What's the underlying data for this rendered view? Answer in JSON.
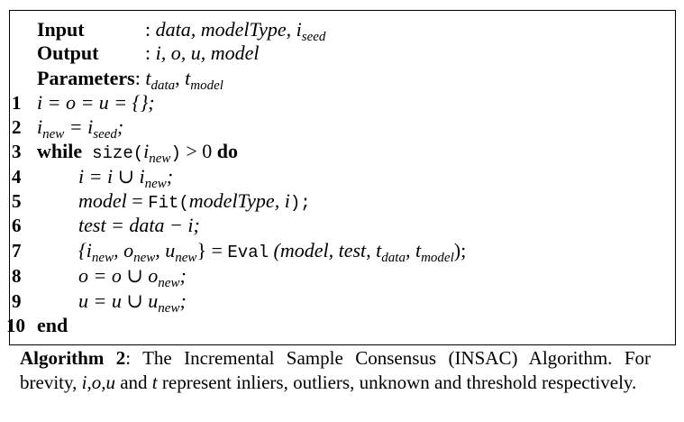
{
  "header": {
    "input_label": "Input",
    "input_sep": ": ",
    "input_vars": "data, modelType, ",
    "input_seed": "i",
    "input_seed_sub": "seed",
    "output_label": "Output",
    "output_sep": ": ",
    "output_vars": "i, o, u, model",
    "params_label": "Parameters",
    "params_sep": ": ",
    "params_t1": "t",
    "params_t1_sub": "data",
    "params_comma": ", ",
    "params_t2": "t",
    "params_t2_sub": "model"
  },
  "lines": [
    {
      "num": "1"
    },
    {
      "num": "2"
    },
    {
      "num": "3"
    },
    {
      "num": "4"
    },
    {
      "num": "5"
    },
    {
      "num": "6"
    },
    {
      "num": "7"
    },
    {
      "num": "8"
    },
    {
      "num": "9"
    },
    {
      "num": "10"
    }
  ],
  "code": {
    "l1": "i = o = u = {};",
    "l2_a": "i",
    "l2_a_sub": "new",
    "l2_b": " = i",
    "l2_b_sub": "seed",
    "l2_c": ";",
    "l3_kw": "while",
    "l3_fn": "size(",
    "l3_i": "i",
    "l3_i_sub": "new",
    "l3_close": ")",
    "l3_cmp": " > 0 ",
    "l3_do": "do",
    "l4_a": "i = i ∪ i",
    "l4_sub": "new",
    "l4_end": ";",
    "l5_a": "model",
    "l5_eq": " = ",
    "l5_fn": "Fit(",
    "l5_args": "modelType, i",
    "l5_close": ");",
    "l6": "test = data − i;",
    "l7_open": "{i",
    "l7_s1": "new",
    "l7_c1": ", o",
    "l7_s2": "new",
    "l7_c2": ", u",
    "l7_s3": "new",
    "l7_c3": "} = ",
    "l7_fn": "Eval",
    "l7_args_a": " (model, test, t",
    "l7_s4": "data",
    "l7_args_b": ", t",
    "l7_s5": "model",
    "l7_end": ");",
    "l8_a": "o = o ∪ o",
    "l8_sub": "new",
    "l8_end": ";",
    "l9_a": "u = u ∪ u",
    "l9_sub": "new",
    "l9_end": ";",
    "l10_kw": "end"
  },
  "caption": {
    "label": "Algorithm 2",
    "text_a": ": The Incremental Sample Consensus (INSAC) Algorithm. For brevity, ",
    "vars": "i,o,u",
    "text_b": " and ",
    "var_t": "t",
    "text_c": " represent inliers, outliers, unknown and threshold respectively."
  }
}
